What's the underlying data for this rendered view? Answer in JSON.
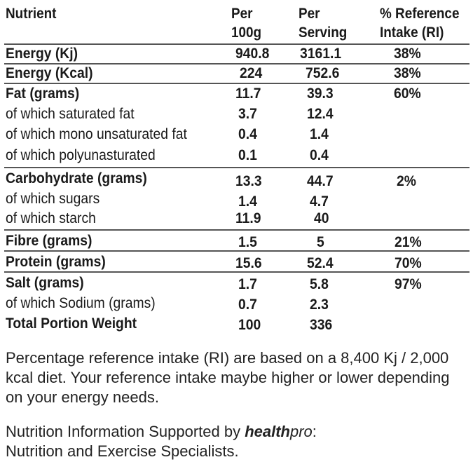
{
  "header": {
    "nutrient": "Nutrient",
    "per100g": "Per\n100g",
    "perServing": "Per\nServing",
    "ri": "% Reference\nIntake (RI)"
  },
  "rows": [
    {
      "name": "Energy (Kj)",
      "per100g": "940.8",
      "perServing": "3161.1",
      "ri": "38%"
    },
    {
      "name": "Energy (Kcal)",
      "per100g": "224",
      "perServing": "752.6",
      "ri": "38%"
    },
    {
      "name": "Fat (grams)",
      "per100g": "11.7",
      "perServing": "39.3",
      "ri": "60%"
    },
    {
      "name": "of which saturated fat",
      "per100g": "3.7",
      "perServing": "12.4",
      "ri": ""
    },
    {
      "name": "of which mono unsaturated fat",
      "per100g": "0.4",
      "perServing": "1.4",
      "ri": ""
    },
    {
      "name": "of which polyunasturated",
      "per100g": "0.1",
      "perServing": "0.4",
      "ri": ""
    },
    {
      "name": "Carbohydrate (grams)",
      "per100g": "13.3",
      "perServing": "44.7",
      "ri": "2%"
    },
    {
      "name": "of which sugars",
      "per100g": "1.4",
      "perServing": "4.7",
      "ri": ""
    },
    {
      "name": "of which starch",
      "per100g": "11.9",
      "perServing": "40",
      "ri": ""
    },
    {
      "name": "Fibre (grams)",
      "per100g": "1.5",
      "perServing": "5",
      "ri": "21%"
    },
    {
      "name": "Protein (grams)",
      "per100g": "15.6",
      "perServing": "52.4",
      "ri": "70%"
    },
    {
      "name": "Salt (grams)",
      "per100g": "1.7",
      "perServing": "5.8",
      "ri": "97%"
    },
    {
      "name": "of which Sodium (grams)",
      "per100g": "0.7",
      "perServing": "2.3",
      "ri": ""
    },
    {
      "name": "Total Portion Weight",
      "per100g": "100",
      "perServing": "336",
      "ri": ""
    }
  ],
  "notes": {
    "ri_note": "Percentage reference intake (RI) are based on a 8,400 Kj / 2,000 kcal diet. Your reference intake maybe higher or lower depending on your energy needs.",
    "support_prefix": "Nutrition Information Supported by ",
    "brand_bold": "health",
    "brand_rest": "pro",
    "support_suffix": ":",
    "support_line2": "Nutrition and Exercise Specialists."
  }
}
